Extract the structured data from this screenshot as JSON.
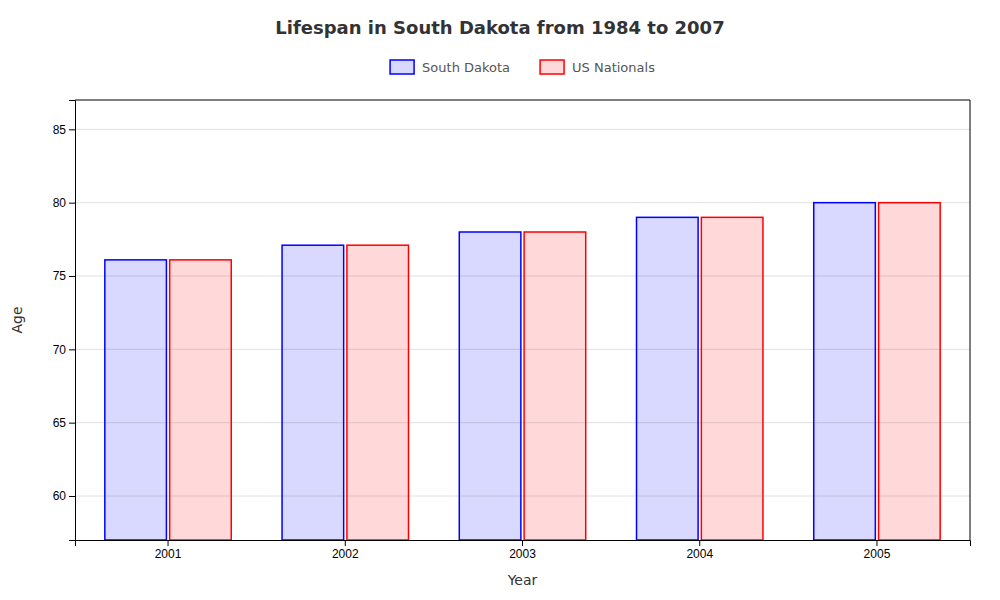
{
  "chart_data": {
    "type": "bar",
    "title": "Lifespan in South Dakota from 1984 to 2007",
    "x_label": "Year",
    "y_label": "Age",
    "categories": [
      "2001",
      "2002",
      "2003",
      "2004",
      "2005"
    ],
    "series": [
      {
        "name": "South Dakota",
        "color": "#0000ff",
        "values": [
          76.1,
          77.1,
          78.0,
          79.0,
          80.0
        ]
      },
      {
        "name": "US Nationals",
        "color": "#ff0000",
        "values": [
          76.1,
          77.1,
          78.0,
          79.0,
          80.0
        ]
      }
    ],
    "ylim": [
      57,
      87
    ],
    "yticks": [
      60,
      65,
      70,
      75,
      80,
      85
    ],
    "grid": true,
    "legend": "top"
  }
}
